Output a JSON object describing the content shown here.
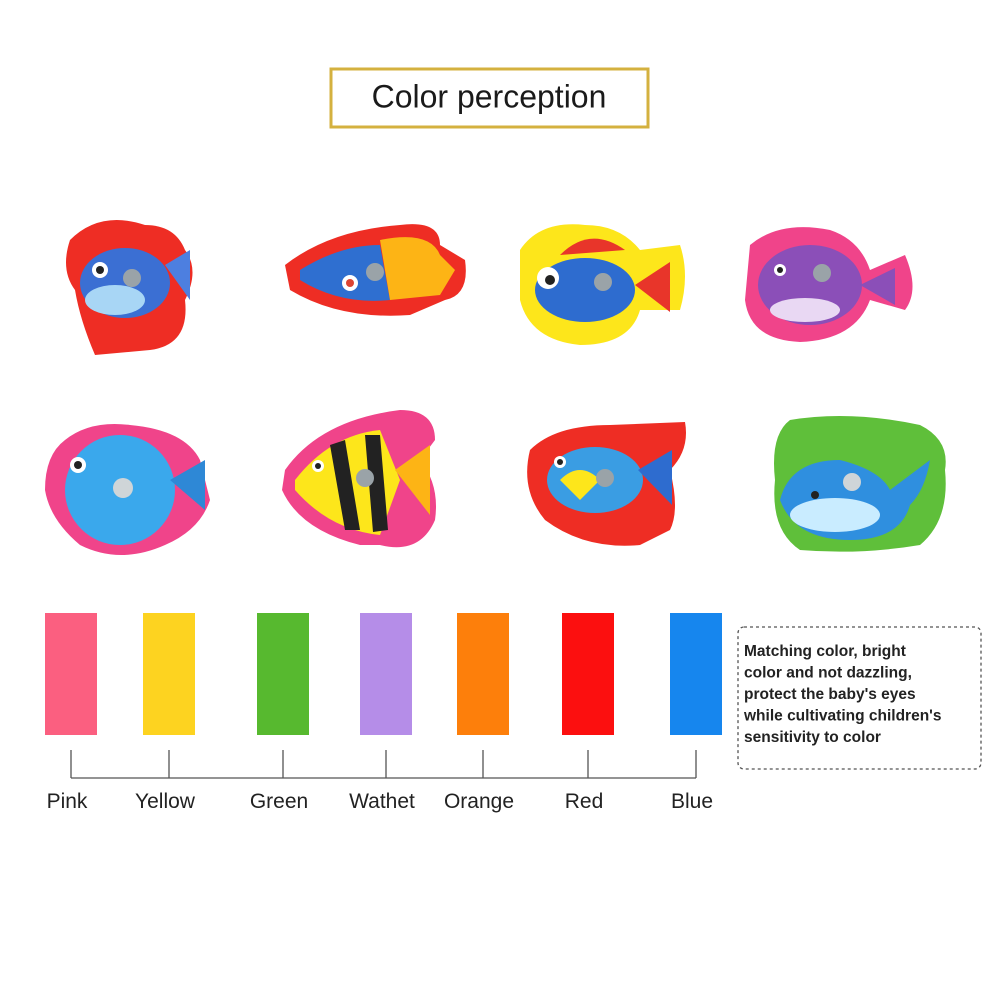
{
  "title": "Color perception",
  "swatches": [
    {
      "name": "Pink",
      "color": "#fb5f80"
    },
    {
      "name": "Yellow",
      "color": "#fdd320"
    },
    {
      "name": "Green",
      "color": "#57b92f"
    },
    {
      "name": "Wathet",
      "color": "#b58de8"
    },
    {
      "name": "Orange",
      "color": "#fd7f0b"
    },
    {
      "name": "Red",
      "color": "#fc0f0f"
    },
    {
      "name": "Blue",
      "color": "#1686ee"
    }
  ],
  "note": {
    "lines": [
      "Matching color, bright",
      "color and not dazzling,",
      "protect the baby's eyes",
      "while cultivating children's",
      "sensitivity to color"
    ]
  }
}
